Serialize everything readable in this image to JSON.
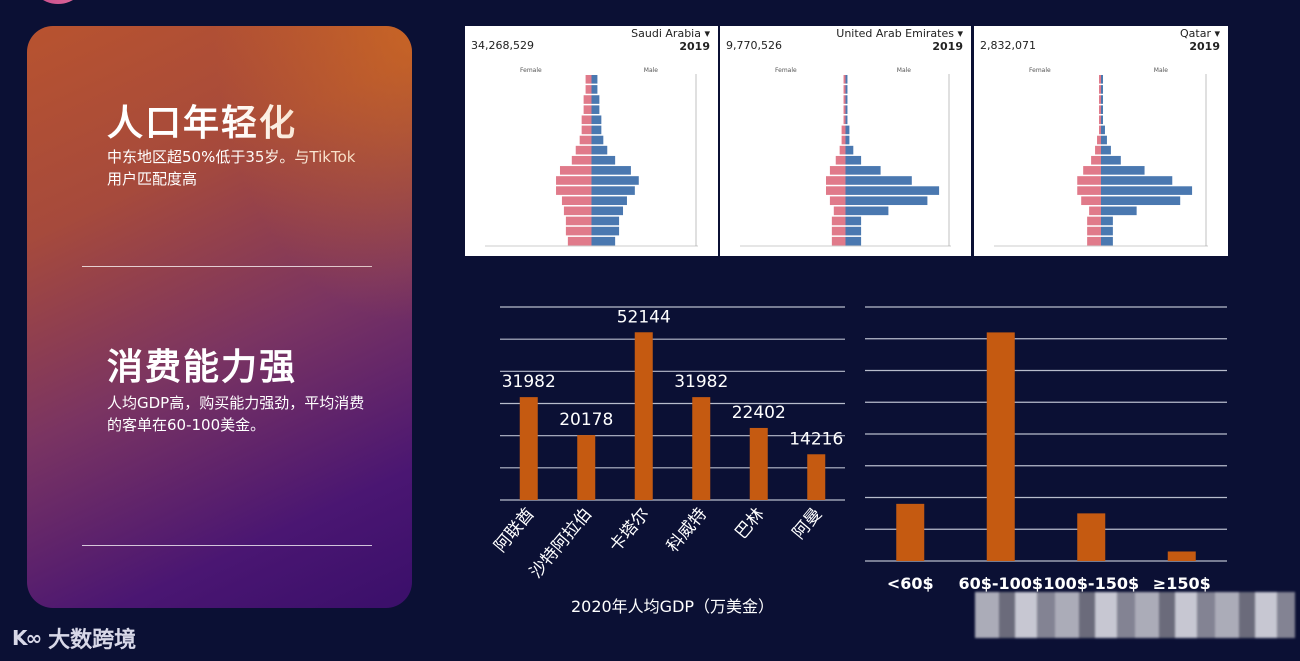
{
  "left": {
    "section1_title": "人口年轻化",
    "section1_desc": "中东地区超50%低于35岁。与TikTok用户匹配度高",
    "section2_title": "消费能力强",
    "section2_desc": "人均GDP高，购买能力强劲，平均消费的客单在60-100美金。"
  },
  "pyramids": [
    {
      "country": "Saudi Arabia ▾",
      "population": "34,268,529",
      "year": "2019",
      "male_label": "Male",
      "female_label": "Female",
      "male": [
        3,
        3,
        4,
        4,
        5,
        5,
        6,
        8,
        12,
        20,
        24,
        22,
        18,
        16,
        14,
        14,
        12
      ],
      "female": [
        3,
        3,
        4,
        4,
        5,
        5,
        6,
        8,
        10,
        16,
        18,
        18,
        15,
        14,
        13,
        13,
        12
      ]
    },
    {
      "country": "United Arab Emirates ▾",
      "population": "9,770,526",
      "year": "2019",
      "male_label": "Male",
      "female_label": "Female",
      "male": [
        1,
        1,
        1,
        1,
        1,
        2,
        2,
        4,
        8,
        18,
        34,
        48,
        42,
        22,
        8,
        8,
        8
      ],
      "female": [
        1,
        1,
        1,
        1,
        1,
        2,
        2,
        3,
        5,
        8,
        10,
        10,
        8,
        6,
        7,
        7,
        7
      ]
    },
    {
      "country": "Qatar ▾",
      "population": "2,832,071",
      "year": "2019",
      "male_label": "Male",
      "female_label": "Female",
      "male": [
        1,
        1,
        1,
        1,
        1,
        2,
        3,
        5,
        10,
        22,
        36,
        46,
        40,
        18,
        6,
        6,
        6
      ],
      "female": [
        1,
        1,
        1,
        1,
        1,
        1,
        2,
        3,
        5,
        9,
        12,
        12,
        10,
        6,
        7,
        7,
        7
      ]
    }
  ],
  "chart_data": [
    {
      "type": "bar",
      "title": "",
      "xlabel": "2020年人均GDP（万美金）",
      "categories": [
        "阿联酋",
        "沙特阿拉伯",
        "卡塔尔",
        "科威特",
        "巴林",
        "阿曼"
      ],
      "values": [
        31982,
        20178,
        52144,
        31982,
        22402,
        14216
      ],
      "ylim": [
        0,
        60000
      ],
      "grid": true,
      "color": "#c55a11"
    },
    {
      "type": "bar",
      "title": "",
      "categories": [
        "<60$",
        "60$-100$",
        "100$-150$",
        "≥150$"
      ],
      "values": [
        18,
        72,
        15,
        3
      ],
      "ylim": [
        0,
        80
      ],
      "grid": true,
      "color": "#c55a11"
    }
  ],
  "watermark": {
    "brand": "大数跨境",
    "icon": "k-logo-icon"
  }
}
